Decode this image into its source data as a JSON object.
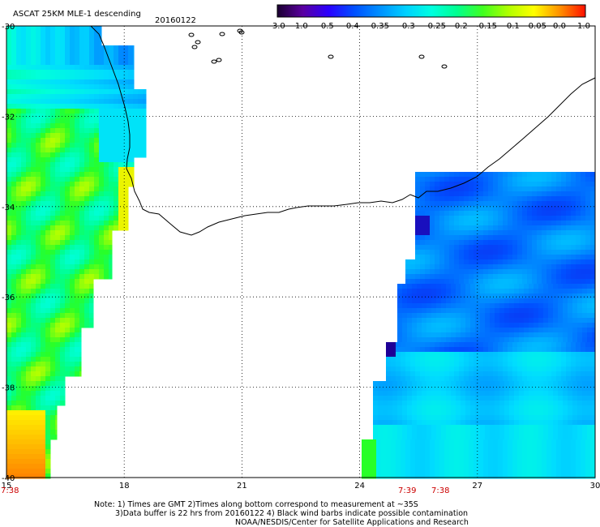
{
  "title": "ASCAT 25KM MLE-1 descending",
  "date": "20160122",
  "colorbar": {
    "labels": [
      "-3.0",
      "-1.0",
      "-0.5",
      "-0.4",
      "-0.35",
      "-0.3",
      "-0.25",
      "-0.2",
      "-0.15",
      "-0.1",
      "-0.05",
      "0.0",
      "1.0"
    ],
    "colors": [
      "#1a0030",
      "#5a00a0",
      "#2a00ff",
      "#0050ff",
      "#0090ff",
      "#00d0ff",
      "#00ffe0",
      "#00ff90",
      "#40ff20",
      "#b0ff00",
      "#ffff00",
      "#ff9000",
      "#ff1000"
    ]
  },
  "map": {
    "lon_ticks": [
      "15",
      "18",
      "21",
      "24",
      "27",
      "30"
    ],
    "lat_ticks": [
      "-30",
      "-32",
      "-34",
      "-36",
      "-38",
      "-40"
    ],
    "lon_range": [
      15,
      30
    ],
    "lat_range": [
      -40,
      -30
    ],
    "grid": true
  },
  "time_labels": [
    "7:38",
    "7:39",
    "7:38"
  ],
  "notes": [
    "Note: 1) Times are GMT 2)Times along bottom correspond to measurement at ~35S",
    "3)Data buffer is 22 hrs from 20160122 4) Black wind barbs indicate possible contamination",
    "NOAA/NESDIS/Center for Satellite Applications and Research"
  ]
}
